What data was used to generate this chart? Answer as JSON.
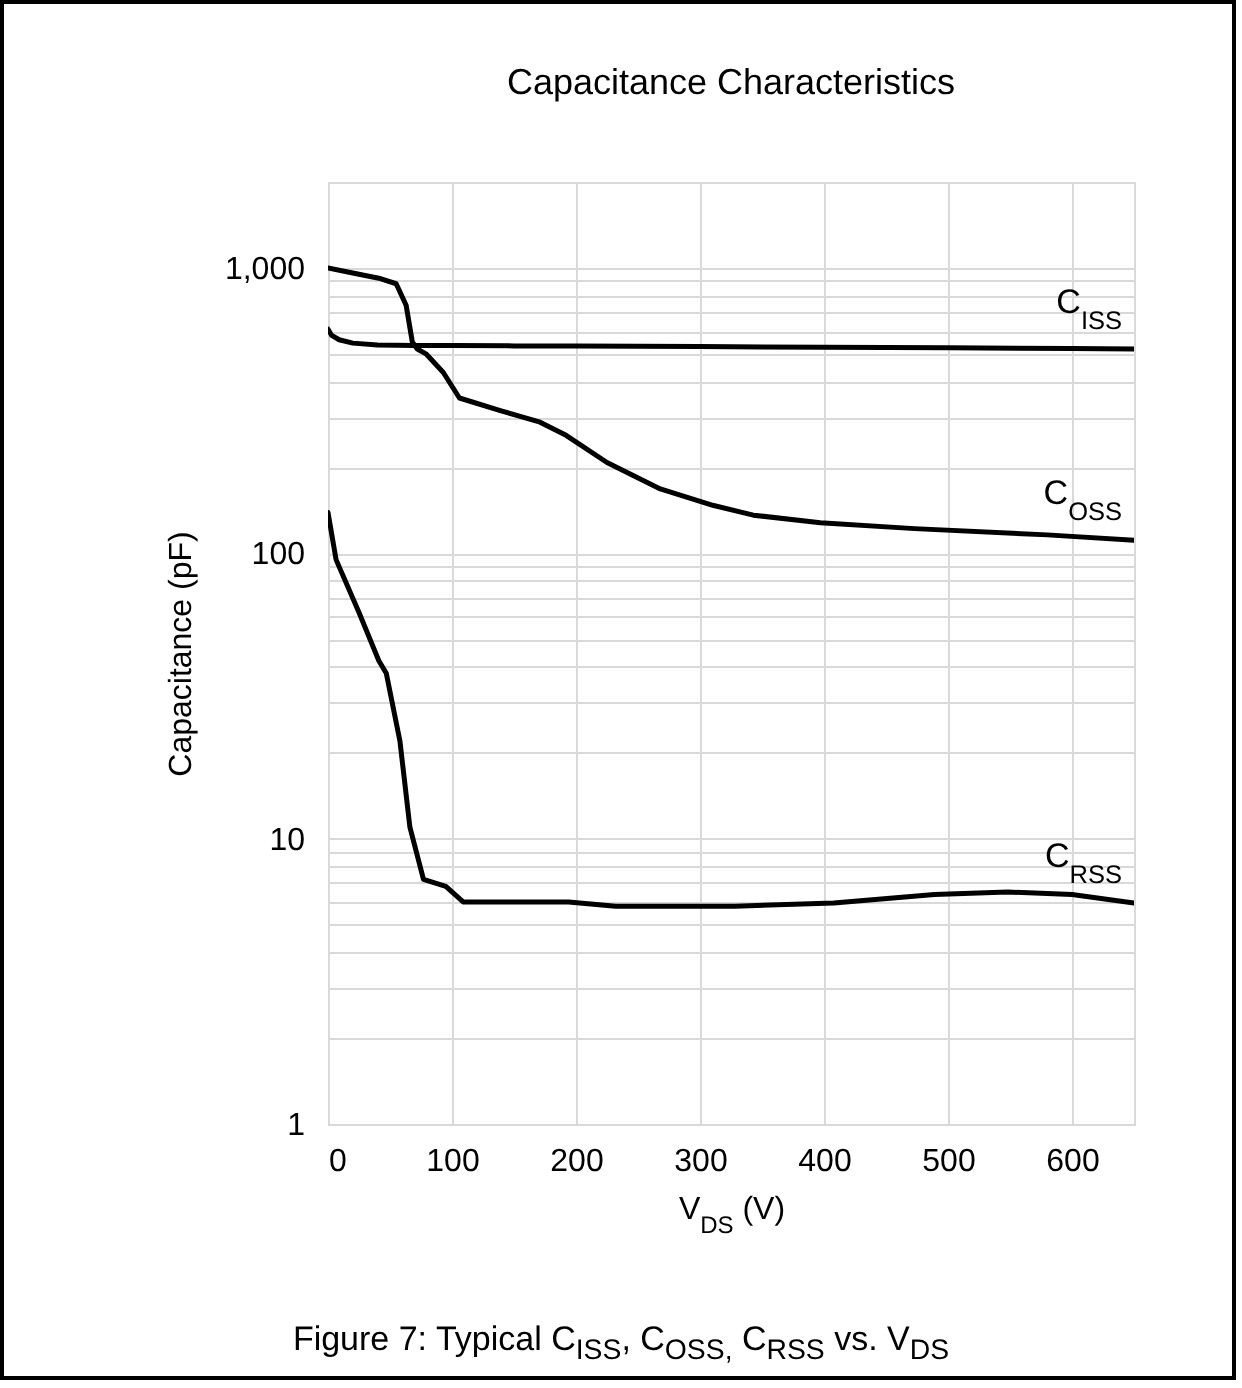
{
  "chart_data": {
    "type": "line",
    "title": "Capacitance Characteristics",
    "xlabel": "V$_{DS}$ (V)",
    "ylabel": "Capacitance (pF)",
    "annotations": [
      "Figure 7: Typical C$_{ISS}$, C$_{OSS,}$ C$_{RSS}$ vs. V$_{DS}$"
    ],
    "series": [
      {
        "name": "C$_{ISS}$",
        "color": "#000000",
        "x": [
          0,
          3,
          9,
          20,
          40,
          70,
          100,
          150,
          200,
          300,
          400,
          500,
          600,
          650
        ],
        "values": [
          610,
          580,
          560,
          545,
          537,
          535,
          535,
          533,
          533,
          530,
          527,
          525,
          522,
          520
        ]
      },
      {
        "name": "C$_{OSS}$",
        "color": "#000000",
        "x": [
          0,
          20,
          41,
          55,
          63,
          68,
          72,
          79,
          93,
          106,
          139,
          171,
          192,
          225,
          268,
          311,
          343,
          397,
          473,
          580,
          650
        ],
        "values": [
          1000,
          960,
          920,
          880,
          740,
          550,
          520,
          500,
          430,
          350,
          316,
          288,
          259,
          208,
          168,
          147,
          136,
          128,
          122,
          116,
          111
        ]
      },
      {
        "name": "C$_{RSS}$",
        "color": "#000000",
        "x": [
          0,
          6.5,
          25,
          41,
          47,
          58,
          66,
          77,
          95,
          109,
          194,
          232,
          328,
          408,
          489,
          548,
          600,
          650
        ],
        "values": [
          139,
          95,
          62,
          42,
          38,
          22,
          11,
          7.2,
          6.8,
          6.0,
          6.0,
          5.8,
          5.8,
          5.95,
          6.37,
          6.5,
          6.37,
          5.95
        ]
      }
    ],
    "xlim": [
      0,
      650
    ],
    "xticks": [
      0,
      100,
      200,
      300,
      400,
      500,
      600
    ],
    "ylim": [
      1,
      2000
    ],
    "yticks": [
      1,
      {
        "value": 2,
        "label": null
      },
      {
        "value": 3,
        "label": null
      },
      {
        "value": 4,
        "label": null
      },
      {
        "value": 5,
        "label": null
      },
      {
        "value": 6,
        "label": null
      },
      {
        "value": 7,
        "label": null
      },
      {
        "value": 8,
        "label": null
      },
      {
        "value": 9,
        "label": null
      },
      10,
      {
        "value": 20,
        "label": null
      },
      {
        "value": 30,
        "label": null
      },
      {
        "value": 40,
        "label": null
      },
      {
        "value": 50,
        "label": null
      },
      {
        "value": 60,
        "label": null
      },
      {
        "value": 70,
        "label": null
      },
      {
        "value": 80,
        "label": null
      },
      {
        "value": 90,
        "label": null
      },
      100,
      {
        "value": 200,
        "label": null
      },
      {
        "value": 300,
        "label": null
      },
      {
        "value": 400,
        "label": null
      },
      {
        "value": 500,
        "label": null
      },
      {
        "value": 600,
        "label": null
      },
      {
        "value": 700,
        "label": null
      },
      {
        "value": 800,
        "label": null
      },
      {
        "value": 900,
        "label": null
      },
      {
        "value": 1000,
        "label": "1,000"
      },
      {
        "value": 2000,
        "label": null
      }
    ],
    "log": true,
    "grid": true,
    "line_style": "solid"
  }
}
